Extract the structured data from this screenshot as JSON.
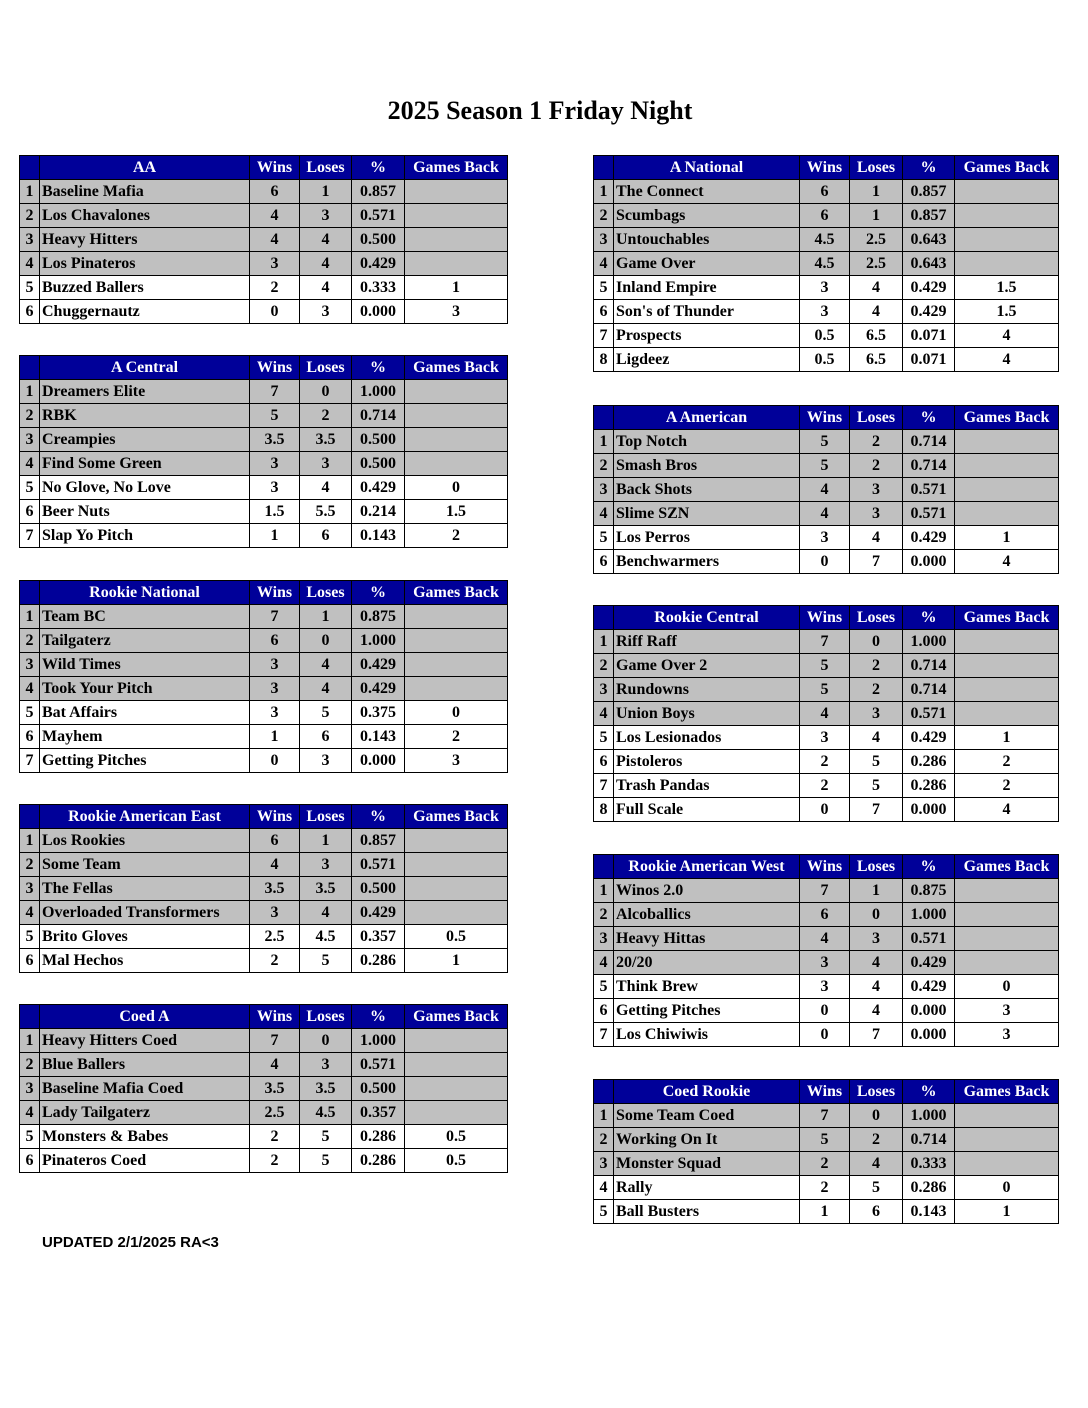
{
  "title": "2025 Season 1 Friday Night",
  "footer": "UPDATED 2/1/2025 RA<3",
  "colors": {
    "header_bg": "#000099",
    "header_text": "#ffffff",
    "highlight_row": "#c0c0c0"
  },
  "columns": {
    "wins": "Wins",
    "loses": "Loses",
    "pct": "%",
    "games_back": "Games Back"
  },
  "divisions": [
    {
      "name": "AA",
      "side": "left",
      "highlighted": 4,
      "rows": [
        [
          "1",
          "Baseline Mafia",
          "6",
          "1",
          "0.857",
          ""
        ],
        [
          "2",
          "Los Chavalones",
          "4",
          "3",
          "0.571",
          ""
        ],
        [
          "3",
          "Heavy Hitters",
          "4",
          "4",
          "0.500",
          ""
        ],
        [
          "4",
          "Los Pinateros",
          "3",
          "4",
          "0.429",
          ""
        ],
        [
          "5",
          "Buzzed Ballers",
          "2",
          "4",
          "0.333",
          "1"
        ],
        [
          "6",
          "Chuggernautz",
          "0",
          "3",
          "0.000",
          "3"
        ]
      ]
    },
    {
      "name": "A Central",
      "side": "left",
      "highlighted": 4,
      "rows": [
        [
          "1",
          "Dreamers Elite",
          "7",
          "0",
          "1.000",
          ""
        ],
        [
          "2",
          "RBK",
          "5",
          "2",
          "0.714",
          ""
        ],
        [
          "3",
          "Creampies",
          "3.5",
          "3.5",
          "0.500",
          ""
        ],
        [
          "4",
          "Find Some Green",
          "3",
          "3",
          "0.500",
          ""
        ],
        [
          "5",
          "No Glove, No Love",
          "3",
          "4",
          "0.429",
          "0"
        ],
        [
          "6",
          "Beer Nuts",
          "1.5",
          "5.5",
          "0.214",
          "1.5"
        ],
        [
          "7",
          "Slap Yo Pitch",
          "1",
          "6",
          "0.143",
          "2"
        ]
      ]
    },
    {
      "name": "Rookie National",
      "side": "left",
      "highlighted": 4,
      "rows": [
        [
          "1",
          "Team BC",
          "7",
          "1",
          "0.875",
          ""
        ],
        [
          "2",
          "Tailgaterz",
          "6",
          "0",
          "1.000",
          ""
        ],
        [
          "3",
          "Wild Times",
          "3",
          "4",
          "0.429",
          ""
        ],
        [
          "4",
          "Took Your Pitch",
          "3",
          "4",
          "0.429",
          ""
        ],
        [
          "5",
          "Bat Affairs",
          "3",
          "5",
          "0.375",
          "0"
        ],
        [
          "6",
          "Mayhem",
          "1",
          "6",
          "0.143",
          "2"
        ],
        [
          "7",
          "Getting Pitches",
          "0",
          "3",
          "0.000",
          "3"
        ]
      ]
    },
    {
      "name": "Rookie American East",
      "side": "left",
      "highlighted": 4,
      "rows": [
        [
          "1",
          "Los Rookies",
          "6",
          "1",
          "0.857",
          ""
        ],
        [
          "2",
          "Some Team",
          "4",
          "3",
          "0.571",
          ""
        ],
        [
          "3",
          "The Fellas",
          "3.5",
          "3.5",
          "0.500",
          ""
        ],
        [
          "4",
          "Overloaded Transformers",
          "3",
          "4",
          "0.429",
          ""
        ],
        [
          "5",
          "Brito Gloves",
          "2.5",
          "4.5",
          "0.357",
          "0.5"
        ],
        [
          "6",
          "Mal Hechos",
          "2",
          "5",
          "0.286",
          "1"
        ]
      ]
    },
    {
      "name": "Coed A",
      "side": "left",
      "highlighted": 4,
      "rows": [
        [
          "1",
          "Heavy Hitters Coed",
          "7",
          "0",
          "1.000",
          ""
        ],
        [
          "2",
          "Blue Ballers",
          "4",
          "3",
          "0.571",
          ""
        ],
        [
          "3",
          "Baseline Mafia Coed",
          "3.5",
          "3.5",
          "0.500",
          ""
        ],
        [
          "4",
          "Lady Tailgaterz",
          "2.5",
          "4.5",
          "0.357",
          ""
        ],
        [
          "5",
          "Monsters & Babes",
          "2",
          "5",
          "0.286",
          "0.5"
        ],
        [
          "6",
          "Pinateros Coed",
          "2",
          "5",
          "0.286",
          "0.5"
        ]
      ]
    },
    {
      "name": "A National",
      "side": "right",
      "highlighted": 4,
      "rows": [
        [
          "1",
          "The Connect",
          "6",
          "1",
          "0.857",
          ""
        ],
        [
          "2",
          "Scumbags",
          "6",
          "1",
          "0.857",
          ""
        ],
        [
          "3",
          "Untouchables",
          "4.5",
          "2.5",
          "0.643",
          ""
        ],
        [
          "4",
          "Game Over",
          "4.5",
          "2.5",
          "0.643",
          ""
        ],
        [
          "5",
          "Inland Empire",
          "3",
          "4",
          "0.429",
          "1.5"
        ],
        [
          "6",
          "Son's of Thunder",
          "3",
          "4",
          "0.429",
          "1.5"
        ],
        [
          "7",
          "Prospects",
          "0.5",
          "6.5",
          "0.071",
          "4"
        ],
        [
          "8",
          "Ligdeez",
          "0.5",
          "6.5",
          "0.071",
          "4"
        ]
      ]
    },
    {
      "name": "A American",
      "side": "right",
      "highlighted": 4,
      "rows": [
        [
          "1",
          "Top Notch",
          "5",
          "2",
          "0.714",
          ""
        ],
        [
          "2",
          "Smash Bros",
          "5",
          "2",
          "0.714",
          ""
        ],
        [
          "3",
          "Back Shots",
          "4",
          "3",
          "0.571",
          ""
        ],
        [
          "4",
          "Slime SZN",
          "4",
          "3",
          "0.571",
          ""
        ],
        [
          "5",
          "Los Perros",
          "3",
          "4",
          "0.429",
          "1"
        ],
        [
          "6",
          "Benchwarmers",
          "0",
          "7",
          "0.000",
          "4"
        ]
      ]
    },
    {
      "name": "Rookie Central",
      "side": "right",
      "highlighted": 4,
      "rows": [
        [
          "1",
          "Riff Raff",
          "7",
          "0",
          "1.000",
          ""
        ],
        [
          "2",
          "Game Over 2",
          "5",
          "2",
          "0.714",
          ""
        ],
        [
          "3",
          "Rundowns",
          "5",
          "2",
          "0.714",
          ""
        ],
        [
          "4",
          "Union Boys",
          "4",
          "3",
          "0.571",
          ""
        ],
        [
          "5",
          "Los Lesionados",
          "3",
          "4",
          "0.429",
          "1"
        ],
        [
          "6",
          "Pistoleros",
          "2",
          "5",
          "0.286",
          "2"
        ],
        [
          "7",
          "Trash Pandas",
          "2",
          "5",
          "0.286",
          "2"
        ],
        [
          "8",
          "Full Scale",
          "0",
          "7",
          "0.000",
          "4"
        ]
      ]
    },
    {
      "name": "Rookie American West",
      "side": "right",
      "highlighted": 4,
      "rows": [
        [
          "1",
          "Winos 2.0",
          "7",
          "1",
          "0.875",
          ""
        ],
        [
          "2",
          "Alcoballics",
          "6",
          "0",
          "1.000",
          ""
        ],
        [
          "3",
          "Heavy Hittas",
          "4",
          "3",
          "0.571",
          ""
        ],
        [
          "4",
          "20/20",
          "3",
          "4",
          "0.429",
          ""
        ],
        [
          "5",
          "Think Brew",
          "3",
          "4",
          "0.429",
          "0"
        ],
        [
          "6",
          "Getting Pitches",
          "0",
          "4",
          "0.000",
          "3"
        ],
        [
          "7",
          "Los Chiwiwis",
          "0",
          "7",
          "0.000",
          "3"
        ]
      ]
    },
    {
      "name": "Coed Rookie",
      "side": "right",
      "highlighted": 3,
      "rows": [
        [
          "1",
          "Some Team Coed",
          "7",
          "0",
          "1.000",
          ""
        ],
        [
          "2",
          "Working On It",
          "5",
          "2",
          "0.714",
          ""
        ],
        [
          "3",
          "Monster Squad",
          "2",
          "4",
          "0.333",
          ""
        ],
        [
          "4",
          "Rally",
          "2",
          "5",
          "0.286",
          "0"
        ],
        [
          "5",
          "Ball Busters",
          "1",
          "6",
          "0.143",
          "1"
        ]
      ]
    }
  ]
}
